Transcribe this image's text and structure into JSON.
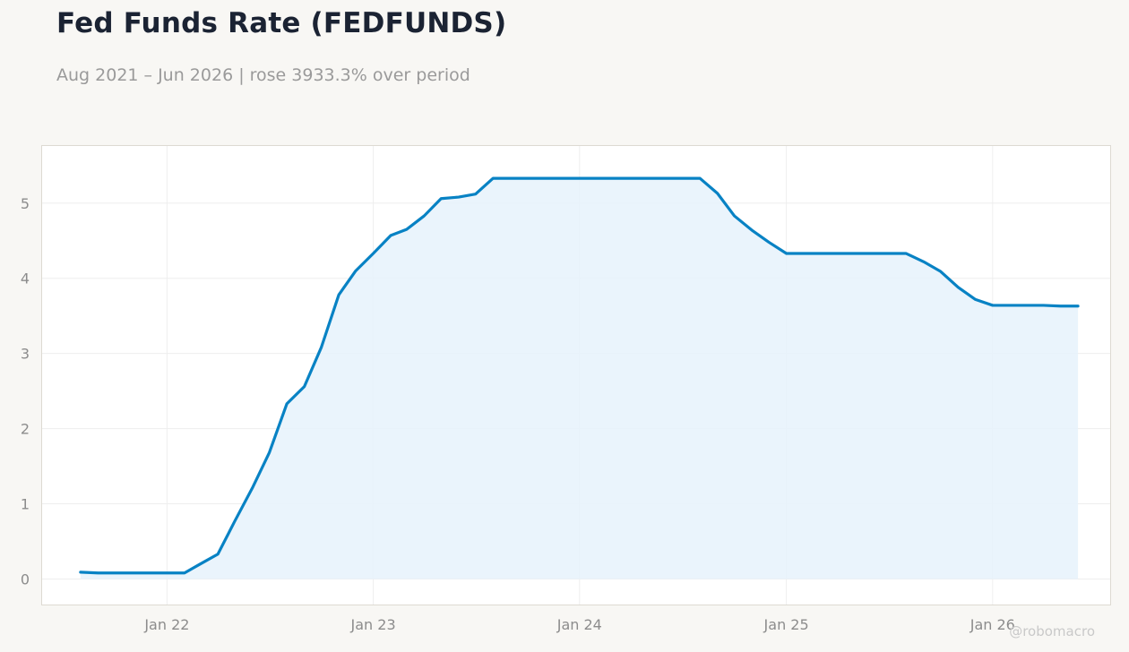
{
  "header": {
    "title": "Fed Funds Rate (FEDFUNDS)",
    "subtitle": "Aug 2021 – Jun 2026 | rose 3933.3% over period"
  },
  "watermark": "@robomacro",
  "colors": {
    "line": "#0882c4",
    "fill": "#e6f2fb",
    "plot_background": "#ffffff",
    "page_background": "#f8f7f4",
    "grid": "#eeeeee",
    "frame": "#dddad2"
  },
  "chart_data": {
    "type": "area",
    "title": "Fed Funds Rate (FEDFUNDS)",
    "xlabel": "",
    "ylabel": "",
    "grid": true,
    "legend": "none",
    "ylim": [
      -0.34,
      5.76
    ],
    "xlim": [
      "2021-05-25",
      "2026-07-28"
    ],
    "yticks": [
      0,
      1,
      2,
      3,
      4,
      5
    ],
    "xticks": [
      {
        "label": "Jan 22",
        "date": "2022-01-01"
      },
      {
        "label": "Jan 23",
        "date": "2023-01-01"
      },
      {
        "label": "Jan 24",
        "date": "2024-01-01"
      },
      {
        "label": "Jan 25",
        "date": "2025-01-01"
      },
      {
        "label": "Jan 26",
        "date": "2026-01-01"
      }
    ],
    "series": [
      {
        "x": [
          "2021-08-01",
          "2021-09-01",
          "2021-10-01",
          "2021-11-01",
          "2021-12-01",
          "2022-01-01",
          "2022-02-01",
          "2022-03-01",
          "2022-04-01",
          "2022-05-01",
          "2022-06-01",
          "2022-07-01",
          "2022-08-01",
          "2022-09-01",
          "2022-10-01",
          "2022-11-01",
          "2022-12-01",
          "2023-01-01",
          "2023-02-01",
          "2023-03-01",
          "2023-04-01",
          "2023-05-01",
          "2023-06-01",
          "2023-07-01",
          "2023-08-01",
          "2023-09-01",
          "2023-10-01",
          "2023-11-01",
          "2023-12-01",
          "2024-01-01",
          "2024-02-01",
          "2024-03-01",
          "2024-04-01",
          "2024-05-01",
          "2024-06-01",
          "2024-07-01",
          "2024-08-01",
          "2024-09-01",
          "2024-10-01",
          "2024-11-01",
          "2024-12-01",
          "2025-01-01",
          "2025-02-01",
          "2025-03-01",
          "2025-04-01",
          "2025-05-01",
          "2025-06-01",
          "2025-07-01",
          "2025-08-01",
          "2025-09-01",
          "2025-10-01",
          "2025-11-01",
          "2025-12-01",
          "2026-01-01",
          "2026-02-01",
          "2026-03-01",
          "2026-04-01",
          "2026-05-01",
          "2026-06-01"
        ],
        "values": [
          0.09,
          0.08,
          0.08,
          0.08,
          0.08,
          0.08,
          0.08,
          0.2,
          0.33,
          0.77,
          1.21,
          1.68,
          2.33,
          2.56,
          3.08,
          3.78,
          4.1,
          4.33,
          4.57,
          4.65,
          4.83,
          5.06,
          5.08,
          5.12,
          5.33,
          5.33,
          5.33,
          5.33,
          5.33,
          5.33,
          5.33,
          5.33,
          5.33,
          5.33,
          5.33,
          5.33,
          5.33,
          5.13,
          4.83,
          4.64,
          4.48,
          4.33,
          4.33,
          4.33,
          4.33,
          4.33,
          4.33,
          4.33,
          4.33,
          4.22,
          4.09,
          3.88,
          3.72,
          3.64,
          3.64,
          3.64,
          3.64,
          3.63,
          3.63
        ]
      }
    ]
  }
}
